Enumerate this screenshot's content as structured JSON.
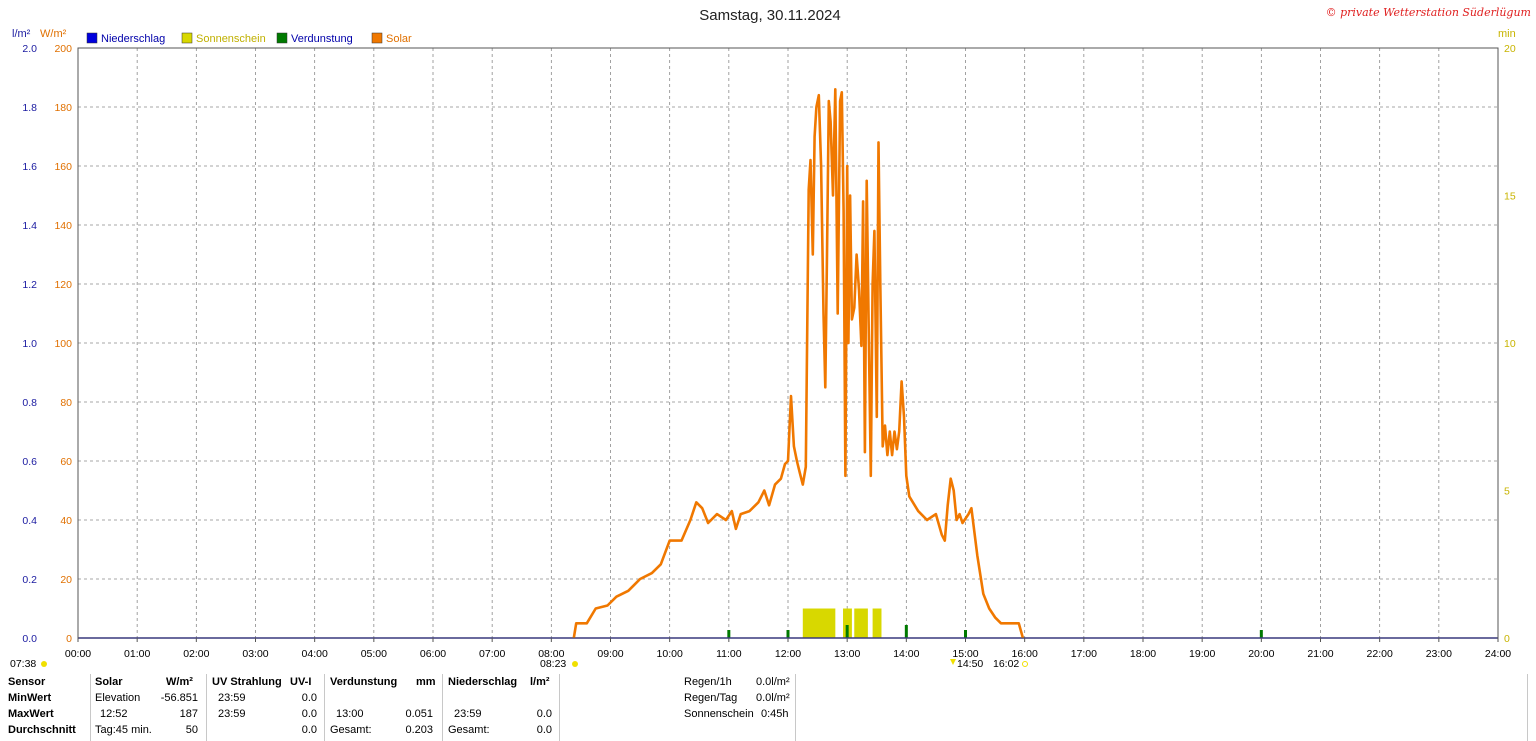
{
  "title": "Samstag, 30.11.2024",
  "copyright": "© private Wetterstation Süderlügum",
  "units": {
    "left_blue": "l/m²",
    "left_orange": "W/m²",
    "right": "min"
  },
  "legend": [
    {
      "name": "Niederschlag",
      "color": "#0000dd"
    },
    {
      "name": "Sonnenschein",
      "color": "#d8d800"
    },
    {
      "name": "Verdunstung",
      "color": "#007a00"
    },
    {
      "name": "Solar",
      "color": "#f07800"
    }
  ],
  "sun_markers": {
    "sunrise": "07:38",
    "solar_start": "08:23",
    "solar_end_a": "14:50",
    "solar_end_b": "16:02"
  },
  "chart_data": {
    "type": "line",
    "title": "Samstag, 30.11.2024",
    "x_ticks": [
      "00:00",
      "01:00",
      "02:00",
      "03:00",
      "04:00",
      "05:00",
      "06:00",
      "07:00",
      "08:00",
      "09:00",
      "10:00",
      "11:00",
      "12:00",
      "13:00",
      "14:00",
      "15:00",
      "16:00",
      "17:00",
      "18:00",
      "19:00",
      "20:00",
      "21:00",
      "22:00",
      "23:00",
      "24:00"
    ],
    "x_range": [
      0,
      24
    ],
    "y_left_precip_ticks": [
      "0.0",
      "0.2",
      "0.4",
      "0.6",
      "0.8",
      "1.0",
      "1.2",
      "1.4",
      "1.6",
      "1.8",
      "2.0"
    ],
    "y_left_solar_ticks": [
      "0",
      "20",
      "40",
      "60",
      "80",
      "100",
      "120",
      "140",
      "160",
      "180",
      "200"
    ],
    "y_right_ticks": [
      "0",
      "5",
      "10",
      "15",
      "20"
    ],
    "y_solar_range": [
      0,
      200
    ],
    "grid": true,
    "series": [
      {
        "name": "Solar",
        "color": "#f07800",
        "points": [
          [
            8.38,
            0
          ],
          [
            8.42,
            5
          ],
          [
            8.6,
            5
          ],
          [
            8.75,
            10
          ],
          [
            8.95,
            11
          ],
          [
            9.1,
            14
          ],
          [
            9.3,
            16
          ],
          [
            9.5,
            20
          ],
          [
            9.7,
            22
          ],
          [
            9.85,
            25
          ],
          [
            10.0,
            33
          ],
          [
            10.2,
            33
          ],
          [
            10.35,
            40
          ],
          [
            10.45,
            46
          ],
          [
            10.55,
            44
          ],
          [
            10.65,
            39
          ],
          [
            10.8,
            42
          ],
          [
            10.95,
            40
          ],
          [
            11.05,
            43
          ],
          [
            11.12,
            37
          ],
          [
            11.2,
            42
          ],
          [
            11.35,
            43
          ],
          [
            11.5,
            46
          ],
          [
            11.6,
            50
          ],
          [
            11.68,
            45
          ],
          [
            11.78,
            52
          ],
          [
            11.88,
            54
          ],
          [
            11.95,
            59
          ],
          [
            12.0,
            60
          ],
          [
            12.05,
            82
          ],
          [
            12.1,
            65
          ],
          [
            12.15,
            60
          ],
          [
            12.2,
            56
          ],
          [
            12.25,
            52
          ],
          [
            12.3,
            58
          ],
          [
            12.35,
            152
          ],
          [
            12.38,
            162
          ],
          [
            12.42,
            130
          ],
          [
            12.45,
            170
          ],
          [
            12.48,
            180
          ],
          [
            12.52,
            184
          ],
          [
            12.56,
            160
          ],
          [
            12.6,
            110
          ],
          [
            12.63,
            85
          ],
          [
            12.66,
            130
          ],
          [
            12.69,
            182
          ],
          [
            12.72,
            175
          ],
          [
            12.76,
            150
          ],
          [
            12.8,
            186
          ],
          [
            12.84,
            110
          ],
          [
            12.88,
            182
          ],
          [
            12.91,
            185
          ],
          [
            12.94,
            145
          ],
          [
            12.97,
            55
          ],
          [
            13.0,
            160
          ],
          [
            13.02,
            100
          ],
          [
            13.05,
            150
          ],
          [
            13.08,
            108
          ],
          [
            13.12,
            112
          ],
          [
            13.16,
            130
          ],
          [
            13.2,
            118
          ],
          [
            13.24,
            99
          ],
          [
            13.27,
            148
          ],
          [
            13.3,
            63
          ],
          [
            13.33,
            155
          ],
          [
            13.36,
            110
          ],
          [
            13.4,
            55
          ],
          [
            13.43,
            120
          ],
          [
            13.46,
            138
          ],
          [
            13.5,
            75
          ],
          [
            13.53,
            168
          ],
          [
            13.56,
            120
          ],
          [
            13.6,
            65
          ],
          [
            13.64,
            72
          ],
          [
            13.68,
            62
          ],
          [
            13.72,
            70
          ],
          [
            13.76,
            62
          ],
          [
            13.8,
            70
          ],
          [
            13.84,
            64
          ],
          [
            13.88,
            70
          ],
          [
            13.92,
            87
          ],
          [
            13.96,
            75
          ],
          [
            14.0,
            55
          ],
          [
            14.05,
            48
          ],
          [
            14.2,
            43
          ],
          [
            14.35,
            40
          ],
          [
            14.5,
            42
          ],
          [
            14.6,
            35
          ],
          [
            14.65,
            33
          ],
          [
            14.7,
            45
          ],
          [
            14.75,
            54
          ],
          [
            14.8,
            50
          ],
          [
            14.85,
            40
          ],
          [
            14.9,
            42
          ],
          [
            14.95,
            39
          ],
          [
            15.05,
            42
          ],
          [
            15.1,
            44
          ],
          [
            15.2,
            28
          ],
          [
            15.3,
            15
          ],
          [
            15.4,
            10
          ],
          [
            15.5,
            7
          ],
          [
            15.6,
            5
          ],
          [
            15.9,
            5
          ],
          [
            15.97,
            0
          ]
        ]
      },
      {
        "name": "Sonnenschein",
        "color": "#d8d800",
        "bars": [
          [
            12.25,
            12.8,
            1
          ],
          [
            12.93,
            13.08,
            1
          ],
          [
            13.12,
            13.35,
            1
          ],
          [
            13.43,
            13.58,
            1
          ]
        ]
      },
      {
        "name": "Verdunstung",
        "color": "#007a00",
        "markers": [
          [
            11.0,
            1
          ],
          [
            12.0,
            1
          ],
          [
            13.0,
            2
          ],
          [
            14.0,
            2
          ],
          [
            15.0,
            1
          ],
          [
            20.0,
            1
          ]
        ]
      }
    ]
  },
  "stats": {
    "headers": {
      "sensor": "Sensor",
      "solar": "Solar",
      "solar_unit": "W/m²",
      "uv": "UV Strahlung",
      "uv_unit": "UV-I",
      "evap": "Verdunstung",
      "evap_unit": "mm",
      "precip": "Niederschlag",
      "precip_unit": "l/m²"
    },
    "min": {
      "label": "MinWert",
      "solar_time": "Elevation",
      "solar_val": "-56.851",
      "uv_time": "23:59",
      "uv_val": "0.0"
    },
    "max": {
      "label": "MaxWert",
      "solar_time": "12:52",
      "solar_val": "187",
      "uv_time": "23:59",
      "uv_val": "0.0",
      "evap_time": "13:00",
      "evap_val": "0.051",
      "precip_time": "23:59",
      "precip_val": "0.0"
    },
    "avg": {
      "label": "Durchschnitt",
      "solar_time": "Tag:45 min.",
      "solar_val": "50",
      "uv_val": "0.0",
      "evap_time": "Gesamt:",
      "evap_val": "0.203",
      "precip_time": "Gesamt:",
      "precip_val": "0.0"
    },
    "summary": [
      {
        "label": "Regen/1h",
        "value": "0.0l/m²"
      },
      {
        "label": "Regen/Tag",
        "value": "0.0l/m²"
      },
      {
        "label": "Sonnenschein",
        "value": "0:45h"
      }
    ]
  }
}
